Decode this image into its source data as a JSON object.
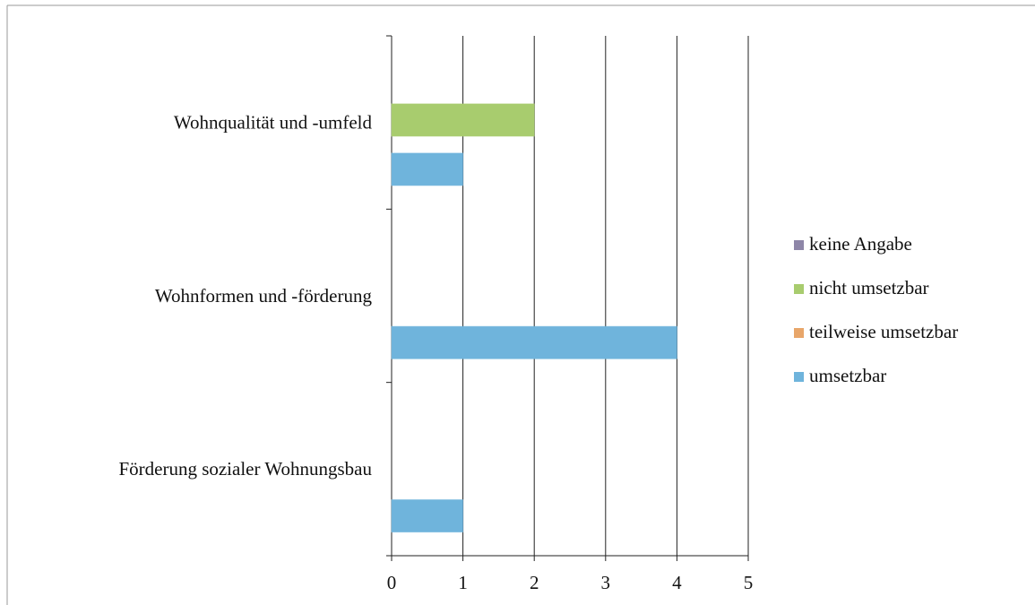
{
  "chart_data": {
    "type": "barh",
    "categories": [
      "Wohnqualität und -umfeld",
      "Wohnformen und -förderung",
      "Förderung sozialer Wohnungsbau"
    ],
    "series": [
      {
        "name": "keine Angabe",
        "color": "#8e86a8",
        "values": [
          0,
          0,
          0
        ]
      },
      {
        "name": "nicht umsetzbar",
        "color": "#a8cc6e",
        "values": [
          2,
          0,
          0
        ]
      },
      {
        "name": "teilweise umsetzbar",
        "color": "#e8a66a",
        "values": [
          0,
          0,
          0
        ]
      },
      {
        "name": "umsetzbar",
        "color": "#6fb4dc",
        "values": [
          1,
          4,
          1
        ]
      }
    ],
    "xlim": [
      0,
      5
    ],
    "xticks": [
      0,
      1,
      2,
      3,
      4,
      5
    ],
    "grid": true,
    "legend": "right"
  }
}
